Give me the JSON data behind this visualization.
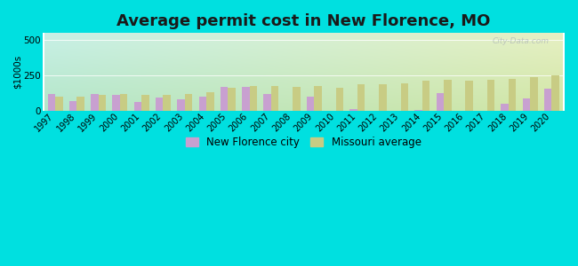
{
  "title": "Average permit cost in New Florence, MO",
  "ylabel": "$1000s",
  "years": [
    1997,
    1998,
    1999,
    2000,
    2001,
    2002,
    2003,
    2004,
    2005,
    2006,
    2007,
    2008,
    2009,
    2010,
    2011,
    2012,
    2013,
    2014,
    2015,
    2016,
    2017,
    2018,
    2019,
    2020
  ],
  "city_values": [
    120,
    70,
    120,
    110,
    65,
    95,
    80,
    100,
    170,
    170,
    120,
    0,
    100,
    0,
    12,
    0,
    0,
    8,
    125,
    0,
    0,
    50,
    90,
    155
  ],
  "mo_values": [
    100,
    100,
    115,
    120,
    115,
    115,
    120,
    130,
    160,
    175,
    175,
    170,
    175,
    160,
    185,
    190,
    195,
    210,
    220,
    215,
    220,
    225,
    240,
    250
  ],
  "city_color": "#c8a0d0",
  "mo_color": "#c8cc84",
  "outer_bg": "#00e0e0",
  "ylim": [
    0,
    550
  ],
  "yticks": [
    0,
    250,
    500
  ],
  "bar_width": 0.35,
  "title_fontsize": 13,
  "axis_fontsize": 7.5,
  "legend_fontsize": 8.5
}
